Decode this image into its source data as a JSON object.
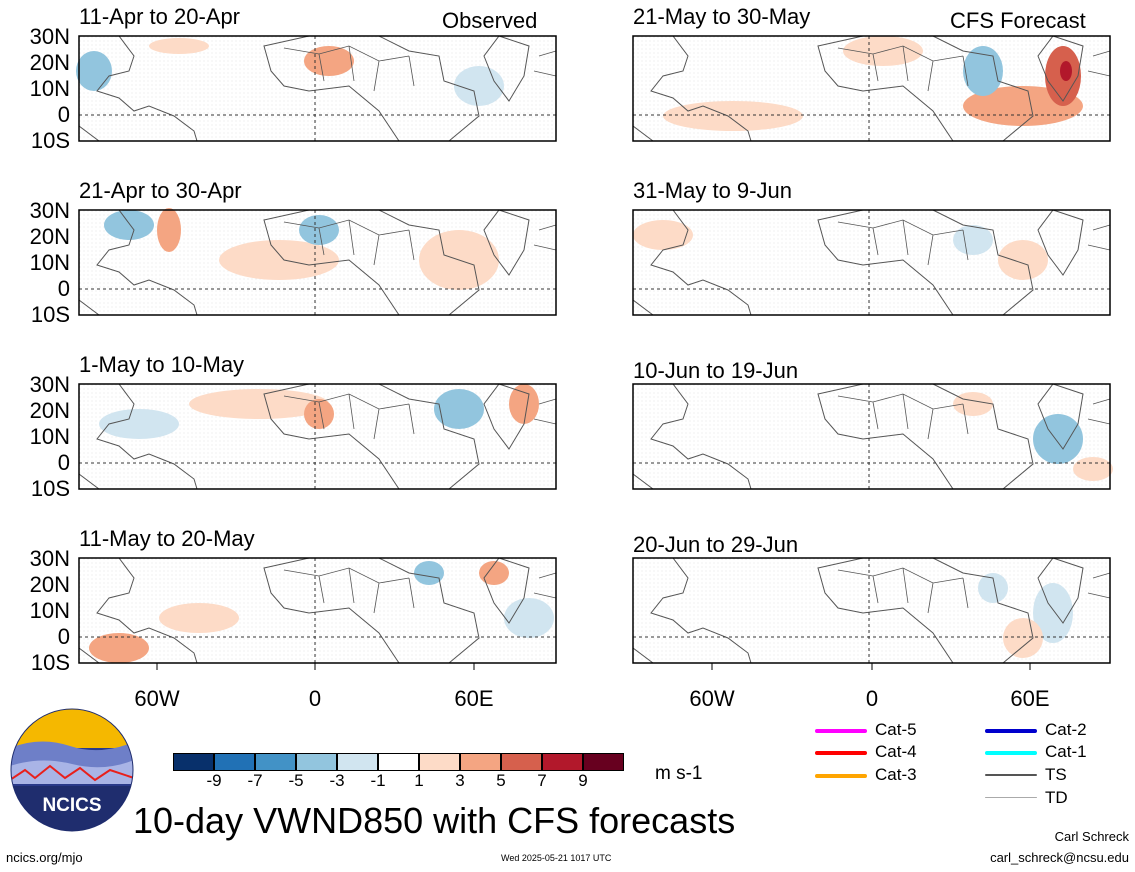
{
  "labels": {
    "observed": "Observed",
    "forecast": "CFS Forecast",
    "main_title": "10-day VWND850 with CFS forecasts",
    "units": "m s-1",
    "site": "ncics.org/mjo",
    "timestamp": "Wed 2025-05-21 1017 UTC",
    "author": "Carl Schreck",
    "email": "carl_schreck@ncsu.edu",
    "logo_text": "NCICS"
  },
  "panels_left": [
    {
      "title": "11-Apr to 20-Apr"
    },
    {
      "title": "21-Apr to 30-Apr"
    },
    {
      "title": "1-May to 10-May"
    },
    {
      "title": "11-May to 20-May"
    }
  ],
  "panels_right": [
    {
      "title": "21-May to 30-May"
    },
    {
      "title": "31-May to 9-Jun"
    },
    {
      "title": "10-Jun to 19-Jun"
    },
    {
      "title": "20-Jun to 29-Jun"
    }
  ],
  "lat_labels": [
    "30N",
    "20N",
    "10N",
    "0",
    "10S"
  ],
  "lon_labels": [
    "60W",
    "0",
    "60E"
  ],
  "colorbar": {
    "ticks": [
      "-9",
      "-7",
      "-5",
      "-3",
      "-1",
      "1",
      "3",
      "5",
      "7",
      "9"
    ],
    "colors": [
      "#08306b",
      "#2171b5",
      "#4292c6",
      "#92c5de",
      "#d1e5f0",
      "#ffffff",
      "#fddbc7",
      "#f4a582",
      "#d6604d",
      "#b2182b",
      "#67001f"
    ]
  },
  "storm_legend": [
    {
      "label": "Cat-5",
      "color": "#ff00ff"
    },
    {
      "label": "Cat-4",
      "color": "#ff0000"
    },
    {
      "label": "Cat-3",
      "color": "#ffa500"
    },
    {
      "label": "Cat-2",
      "color": "#0000cd"
    },
    {
      "label": "Cat-1",
      "color": "#00ffff"
    },
    {
      "label": "TS",
      "color": "#555555"
    },
    {
      "label": "TD",
      "color": "#aaaaaa"
    }
  ]
}
